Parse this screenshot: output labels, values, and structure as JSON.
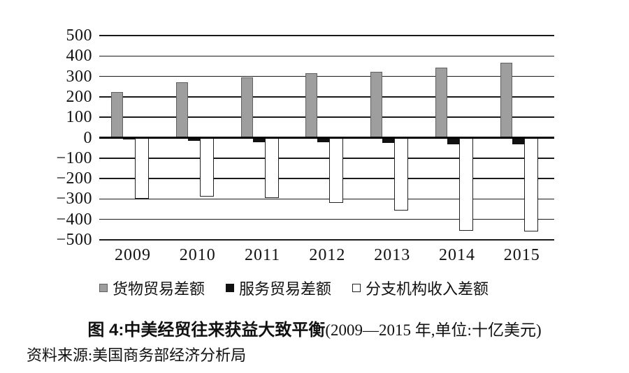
{
  "figure": {
    "caption_prefix": "图 4:",
    "caption_main": "中美经贸往来获益大致平衡",
    "caption_suffix": "(2009—2015 年,单位:十亿美元)",
    "source": "资料来源:美国商务部经济分析局"
  },
  "colors": {
    "goods_fill": "#9e9e9e",
    "goods_border": "#606060",
    "services_fill": "#111111",
    "branch_fill": "#ffffff",
    "branch_border": "#222222",
    "gridline": "#1a1a1a",
    "zero_line": "#000000"
  },
  "chart_data": {
    "type": "bar",
    "categories": [
      "2009",
      "2010",
      "2011",
      "2012",
      "2013",
      "2014",
      "2015"
    ],
    "series": [
      {
        "name": "货物贸易差额",
        "role": "goods-trade-balance",
        "values": [
          225,
          272,
          296,
          317,
          323,
          343,
          367
        ]
      },
      {
        "name": "服务贸易差额",
        "role": "services-trade-balance",
        "values": [
          -8,
          -15,
          -22,
          -21,
          -27,
          -31,
          -34
        ]
      },
      {
        "name": "分支机构收入差额",
        "role": "branch-income-balance",
        "values": [
          -300,
          -290,
          -296,
          -320,
          -355,
          -455,
          -458
        ]
      }
    ],
    "title": "图 4:中美经贸往来获益大致平衡(2009—2015 年,单位:十亿美元)",
    "xlabel": "",
    "ylabel": "",
    "ylim": [
      -500,
      500
    ],
    "ytick_step": 100,
    "yticks": [
      "500",
      "400",
      "300",
      "200",
      "100",
      "0",
      "−100",
      "−200",
      "−300",
      "−400",
      "−500"
    ],
    "grid": true,
    "legend_position": "bottom"
  }
}
